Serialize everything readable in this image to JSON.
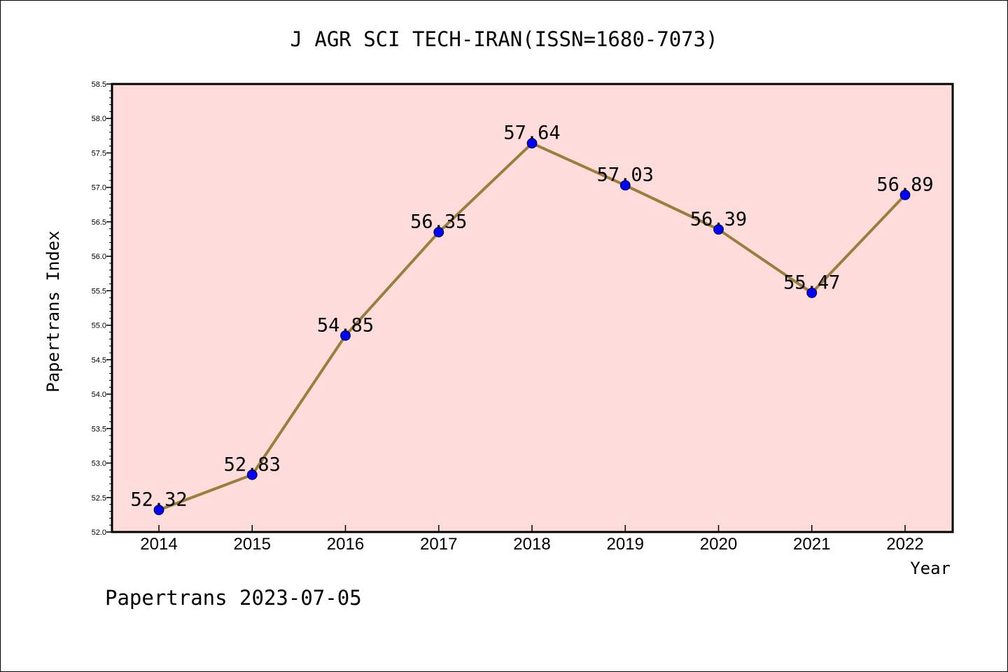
{
  "chart_data": {
    "type": "line",
    "title": "J AGR SCI TECH-IRAN(ISSN=1680-7073)",
    "xlabel": "Year",
    "ylabel": "Papertrans Index",
    "footer": "Papertrans 2023-07-05",
    "x": [
      "2014",
      "2015",
      "2016",
      "2017",
      "2018",
      "2019",
      "2020",
      "2021",
      "2022"
    ],
    "series": [
      {
        "values": [
          52.32,
          52.83,
          54.85,
          56.35,
          57.64,
          57.03,
          56.39,
          55.47,
          56.89
        ],
        "labels": [
          "52.32",
          "52.83",
          "54.85",
          "56.35",
          "57.64",
          "57.03",
          "56.39",
          "55.47",
          "56.89"
        ],
        "line_color": "#9a7f3c",
        "marker_color": "#0000ff"
      }
    ],
    "ylim": [
      52.0,
      58.5
    ],
    "yticks": [
      "52.0",
      "52.5",
      "53.0",
      "53.5",
      "54.0",
      "54.5",
      "55.0",
      "55.5",
      "56.0",
      "56.5",
      "57.0",
      "57.5",
      "58.0",
      "58.5"
    ],
    "plot_background": "#ffdcdc",
    "grid": false,
    "legend": "none"
  }
}
